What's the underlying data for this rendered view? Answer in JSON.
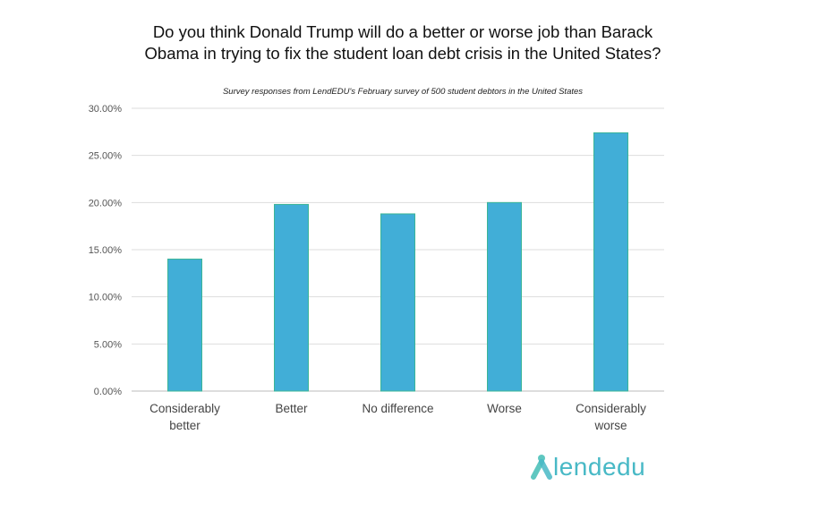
{
  "chart_data": {
    "type": "bar",
    "title": "Do you think Donald Trump will do a better or worse job than Barack Obama in trying to fix the student loan debt crisis in the United States?",
    "subtitle": "Survey responses from LendEDU's February survey of 500 student debtors in the United States",
    "categories": [
      [
        "Considerably",
        "better"
      ],
      [
        "Better"
      ],
      [
        "No difference"
      ],
      [
        "Worse"
      ],
      [
        "Considerably",
        "worse"
      ]
    ],
    "values": [
      14.0,
      19.8,
      18.8,
      20.0,
      27.4
    ],
    "yticks": [
      "0.00%",
      "5.00%",
      "10.00%",
      "15.00%",
      "20.00%",
      "25.00%",
      "30.00%"
    ],
    "ylim": [
      0,
      30
    ],
    "grid": true,
    "legend": "none",
    "bar_color": "#41aed7",
    "bar_edge_color": "#3bb597"
  },
  "logo": {
    "text": "lendedu"
  }
}
